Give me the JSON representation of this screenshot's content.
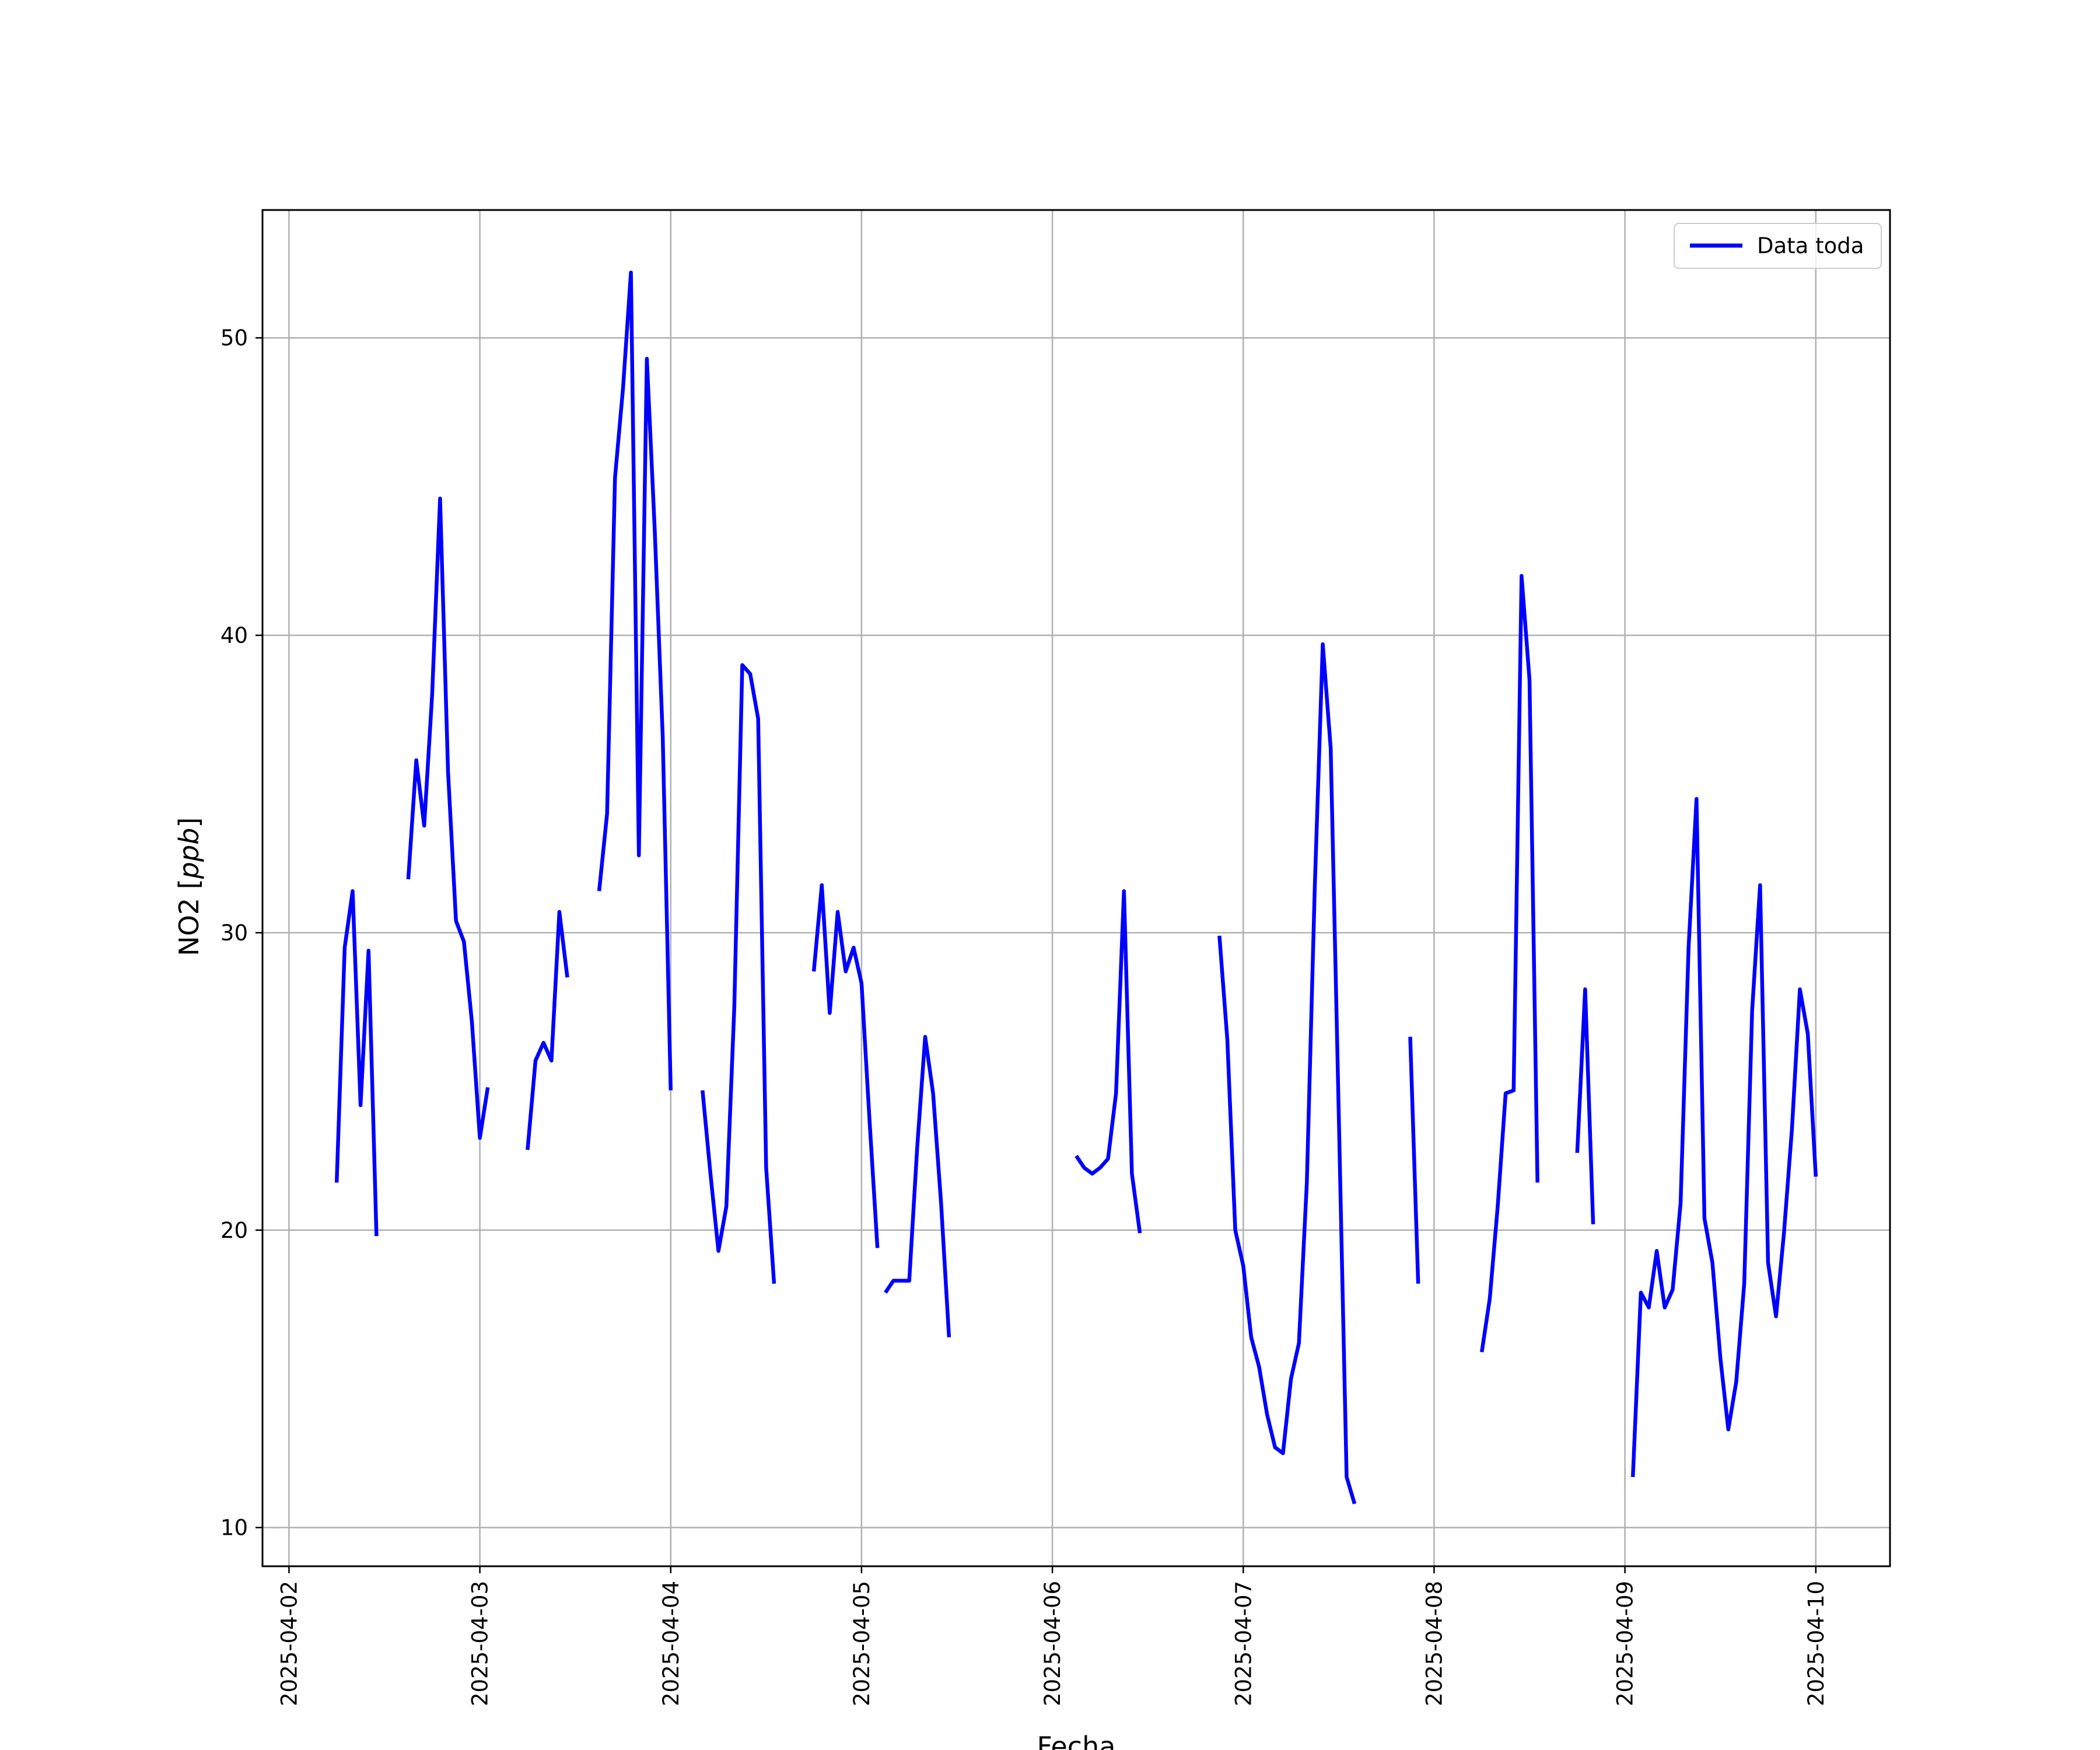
{
  "chart_data": {
    "type": "line",
    "title": "",
    "xlabel": "Fecha",
    "ylabel": "NO2 [ppb]",
    "ylabel_parts": {
      "prefix": "NO2 [",
      "unit": "ppb",
      "suffix": "]"
    },
    "x_axis_kind": "datetime",
    "xlim": [
      "2025-04-01T20:40",
      "2025-04-10T09:20"
    ],
    "ylim": [
      8.7,
      54.3
    ],
    "x_ticks": [
      "2025-04-02",
      "2025-04-03",
      "2025-04-04",
      "2025-04-05",
      "2025-04-06",
      "2025-04-07",
      "2025-04-08",
      "2025-04-09",
      "2025-04-10"
    ],
    "y_ticks": [
      10,
      20,
      30,
      40,
      50
    ],
    "grid": true,
    "legend": {
      "position": "upper right",
      "entries": [
        "Data toda"
      ]
    },
    "series": [
      {
        "name": "Data toda",
        "color": "#0000ff",
        "segments": [
          [
            [
              "2025-04-02T06:00",
              21.6
            ],
            [
              "2025-04-02T07:00",
              29.5
            ],
            [
              "2025-04-02T08:00",
              31.4
            ],
            [
              "2025-04-02T09:00",
              24.2
            ],
            [
              "2025-04-02T10:00",
              29.4
            ],
            [
              "2025-04-02T11:00",
              19.8
            ]
          ],
          [
            [
              "2025-04-02T15:00",
              31.8
            ],
            [
              "2025-04-02T16:00",
              35.8
            ],
            [
              "2025-04-02T17:00",
              33.6
            ],
            [
              "2025-04-02T18:00",
              38.0
            ],
            [
              "2025-04-02T19:00",
              44.6
            ],
            [
              "2025-04-02T20:00",
              35.4
            ],
            [
              "2025-04-02T21:00",
              30.4
            ],
            [
              "2025-04-02T22:00",
              29.7
            ],
            [
              "2025-04-02T23:00",
              27.0
            ],
            [
              "2025-04-03T00:00",
              23.1
            ],
            [
              "2025-04-03T01:00",
              24.8
            ]
          ],
          [
            [
              "2025-04-03T06:00",
              22.7
            ],
            [
              "2025-04-03T07:00",
              25.7
            ],
            [
              "2025-04-03T08:00",
              26.3
            ],
            [
              "2025-04-03T09:00",
              25.7
            ],
            [
              "2025-04-03T10:00",
              30.7
            ],
            [
              "2025-04-03T11:00",
              28.5
            ]
          ],
          [
            [
              "2025-04-03T15:00",
              31.4
            ],
            [
              "2025-04-03T16:00",
              34.0
            ],
            [
              "2025-04-03T17:00",
              45.3
            ],
            [
              "2025-04-03T18:00",
              48.3
            ],
            [
              "2025-04-03T19:00",
              52.2
            ],
            [
              "2025-04-03T20:00",
              32.6
            ],
            [
              "2025-04-03T21:00",
              49.3
            ],
            [
              "2025-04-03T22:00",
              43.5
            ],
            [
              "2025-04-03T23:00",
              36.6
            ],
            [
              "2025-04-04T00:00",
              24.7
            ]
          ],
          [
            [
              "2025-04-04T04:00",
              24.7
            ],
            [
              "2025-04-04T05:00",
              21.9
            ],
            [
              "2025-04-04T06:00",
              19.3
            ],
            [
              "2025-04-04T07:00",
              20.8
            ],
            [
              "2025-04-04T08:00",
              27.5
            ],
            [
              "2025-04-04T09:00",
              39.0
            ],
            [
              "2025-04-04T10:00",
              38.7
            ],
            [
              "2025-04-04T11:00",
              37.2
            ],
            [
              "2025-04-04T12:00",
              22.1
            ],
            [
              "2025-04-04T13:00",
              18.2
            ]
          ],
          [
            [
              "2025-04-04T18:00",
              28.7
            ],
            [
              "2025-04-04T19:00",
              31.6
            ],
            [
              "2025-04-04T20:00",
              27.3
            ],
            [
              "2025-04-04T21:00",
              30.7
            ],
            [
              "2025-04-04T22:00",
              28.7
            ],
            [
              "2025-04-04T23:00",
              29.5
            ],
            [
              "2025-04-05T00:00",
              28.3
            ],
            [
              "2025-04-05T01:00",
              23.7
            ],
            [
              "2025-04-05T02:00",
              19.4
            ]
          ],
          [
            [
              "2025-04-05T03:00",
              17.9
            ],
            [
              "2025-04-05T04:00",
              18.3
            ],
            [
              "2025-04-05T05:00",
              18.3
            ],
            [
              "2025-04-05T06:00",
              18.3
            ],
            [
              "2025-04-05T07:00",
              22.8
            ],
            [
              "2025-04-05T08:00",
              26.5
            ],
            [
              "2025-04-05T09:00",
              24.6
            ],
            [
              "2025-04-05T10:00",
              20.9
            ],
            [
              "2025-04-05T11:00",
              16.4
            ]
          ],
          [
            [
              "2025-04-06T03:00",
              22.5
            ],
            [
              "2025-04-06T04:00",
              22.1
            ],
            [
              "2025-04-06T05:00",
              21.9
            ],
            [
              "2025-04-06T06:00",
              22.1
            ],
            [
              "2025-04-06T07:00",
              22.4
            ],
            [
              "2025-04-06T08:00",
              24.6
            ],
            [
              "2025-04-06T09:00",
              31.4
            ],
            [
              "2025-04-06T10:00",
              21.9
            ],
            [
              "2025-04-06T11:00",
              19.9
            ]
          ],
          [
            [
              "2025-04-06T21:00",
              29.9
            ],
            [
              "2025-04-06T22:00",
              26.4
            ],
            [
              "2025-04-06T23:00",
              20.0
            ],
            [
              "2025-04-07T00:00",
              18.8
            ],
            [
              "2025-04-07T01:00",
              16.4
            ],
            [
              "2025-04-07T02:00",
              15.4
            ],
            [
              "2025-04-07T03:00",
              13.8
            ],
            [
              "2025-04-07T04:00",
              12.7
            ],
            [
              "2025-04-07T05:00",
              12.5
            ],
            [
              "2025-04-07T06:00",
              15.0
            ],
            [
              "2025-04-07T07:00",
              16.2
            ],
            [
              "2025-04-07T08:00",
              21.6
            ],
            [
              "2025-04-07T09:00",
              31.6
            ],
            [
              "2025-04-07T10:00",
              39.7
            ],
            [
              "2025-04-07T11:00",
              36.2
            ],
            [
              "2025-04-07T12:00",
              24.0
            ],
            [
              "2025-04-07T13:00",
              11.7
            ],
            [
              "2025-04-07T14:00",
              10.8
            ]
          ],
          [
            [
              "2025-04-07T21:00",
              26.5
            ],
            [
              "2025-04-07T22:00",
              18.2
            ]
          ],
          [
            [
              "2025-04-08T06:00",
              15.9
            ],
            [
              "2025-04-08T07:00",
              17.7
            ],
            [
              "2025-04-08T08:00",
              20.8
            ],
            [
              "2025-04-08T09:00",
              24.6
            ],
            [
              "2025-04-08T10:00",
              24.7
            ],
            [
              "2025-04-08T11:00",
              42.0
            ],
            [
              "2025-04-08T12:00",
              38.5
            ],
            [
              "2025-04-08T13:00",
              21.6
            ]
          ],
          [
            [
              "2025-04-08T18:00",
              22.6
            ],
            [
              "2025-04-08T19:00",
              28.1
            ],
            [
              "2025-04-08T20:00",
              20.2
            ]
          ],
          [
            [
              "2025-04-09T01:00",
              11.7
            ],
            [
              "2025-04-09T02:00",
              17.9
            ],
            [
              "2025-04-09T03:00",
              17.4
            ],
            [
              "2025-04-09T04:00",
              19.3
            ],
            [
              "2025-04-09T05:00",
              17.4
            ],
            [
              "2025-04-09T06:00",
              18.0
            ],
            [
              "2025-04-09T07:00",
              20.9
            ],
            [
              "2025-04-09T08:00",
              29.5
            ],
            [
              "2025-04-09T09:00",
              34.5
            ],
            [
              "2025-04-09T10:00",
              20.4
            ],
            [
              "2025-04-09T11:00",
              18.9
            ],
            [
              "2025-04-09T12:00",
              15.7
            ],
            [
              "2025-04-09T13:00",
              13.3
            ],
            [
              "2025-04-09T14:00",
              14.9
            ],
            [
              "2025-04-09T15:00",
              18.2
            ],
            [
              "2025-04-09T16:00",
              27.4
            ],
            [
              "2025-04-09T17:00",
              31.6
            ],
            [
              "2025-04-09T18:00",
              18.9
            ],
            [
              "2025-04-09T19:00",
              17.1
            ],
            [
              "2025-04-09T20:00",
              19.9
            ],
            [
              "2025-04-09T21:00",
              23.4
            ],
            [
              "2025-04-09T22:00",
              28.1
            ],
            [
              "2025-04-09T23:00",
              26.6
            ],
            [
              "2025-04-10T00:00",
              21.8
            ]
          ]
        ]
      }
    ]
  }
}
